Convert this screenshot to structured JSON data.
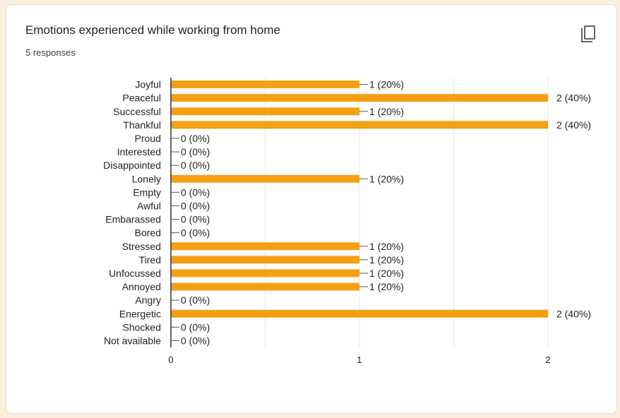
{
  "card": {
    "title": "Emotions experienced while working from home",
    "responses": "5 responses",
    "copy_icon": "copy-icon"
  },
  "colors": {
    "bar": "#f4a014",
    "axis": "#333333",
    "grid": "#e8e8e8",
    "text": "#222222"
  },
  "chart_data": {
    "type": "bar",
    "orientation": "horizontal",
    "title": "Emotions experienced while working from home",
    "categories": [
      "Joyful",
      "Peaceful",
      "Successful",
      "Thankful",
      "Proud",
      "Interested",
      "Disappointed",
      "Lonely",
      "Empty",
      "Awful",
      "Embarassed",
      "Bored",
      "Stressed",
      "Tired",
      "Unfocussed",
      "Annoyed",
      "Angry",
      "Energetic",
      "Shocked",
      "Not available"
    ],
    "values": [
      1,
      2,
      1,
      2,
      0,
      0,
      0,
      1,
      0,
      0,
      0,
      0,
      1,
      1,
      1,
      1,
      0,
      2,
      0,
      0
    ],
    "data_labels": [
      "1 (20%)",
      "2 (40%)",
      "1 (20%)",
      "2 (40%)",
      "0 (0%)",
      "0 (0%)",
      "0 (0%)",
      "1 (20%)",
      "0 (0%)",
      "0 (0%)",
      "0 (0%)",
      "0 (0%)",
      "1 (20%)",
      "1 (20%)",
      "1 (20%)",
      "1 (20%)",
      "0 (0%)",
      "2 (40%)",
      "0 (0%)",
      "0 (0%)"
    ],
    "xlim": [
      0,
      2
    ],
    "xticks": [
      0,
      1,
      2
    ],
    "xtick_labels": [
      "0",
      "1",
      "2"
    ],
    "grid": true
  }
}
